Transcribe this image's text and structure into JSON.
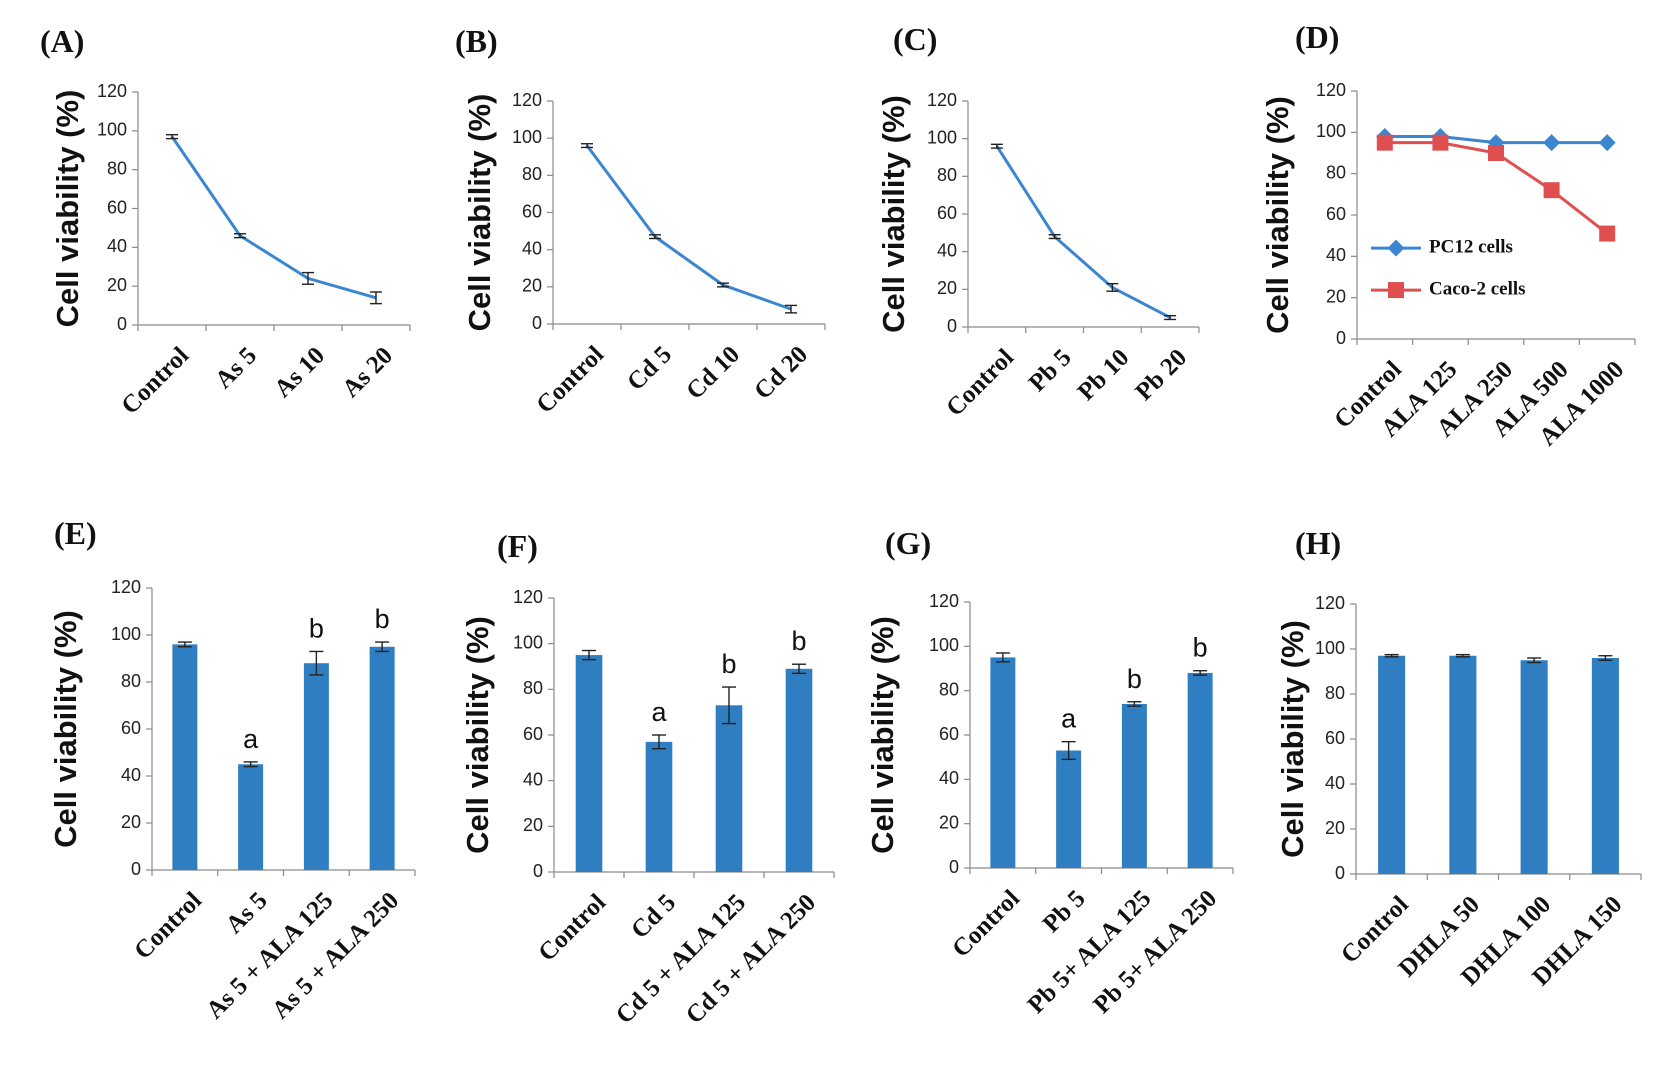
{
  "colors": {
    "blue": "#2E7EC1",
    "line_blue": "#3B86D0",
    "red": "#E04F50",
    "axis": "#8a8a8a",
    "err": "#222222"
  },
  "chart_data": [
    {
      "id": "A",
      "label": "(A)",
      "type": "line",
      "categories": [
        "Control",
        "As 5",
        "As 10",
        "As 20"
      ],
      "series": [
        {
          "name": "",
          "values": [
            97,
            46,
            24,
            14
          ],
          "errors": [
            1,
            1,
            3,
            3
          ]
        }
      ],
      "ylabel": "Cell viability (%)",
      "ylim": [
        0,
        120
      ],
      "yticks": [
        0,
        20,
        40,
        60,
        80,
        100,
        120
      ]
    },
    {
      "id": "B",
      "label": "(B)",
      "type": "line",
      "categories": [
        "Control",
        "Cd 5",
        "Cd 10",
        "Cd 20"
      ],
      "series": [
        {
          "name": "",
          "values": [
            96,
            47,
            21,
            8
          ],
          "errors": [
            1,
            1,
            1,
            2
          ]
        }
      ],
      "ylabel": "Cell viability (%)",
      "ylim": [
        0,
        120
      ],
      "yticks": [
        0,
        20,
        40,
        60,
        80,
        100,
        120
      ]
    },
    {
      "id": "C",
      "label": "(C)",
      "type": "line",
      "categories": [
        "Control",
        "Pb 5",
        "Pb 10",
        "Pb 20"
      ],
      "series": [
        {
          "name": "",
          "values": [
            96,
            48,
            21,
            5
          ],
          "errors": [
            1,
            1,
            2,
            1
          ]
        }
      ],
      "ylabel": "Cell viability (%)",
      "ylim": [
        0,
        120
      ],
      "yticks": [
        0,
        20,
        40,
        60,
        80,
        100,
        120
      ]
    },
    {
      "id": "D",
      "label": "(D)",
      "type": "line",
      "categories": [
        "Control",
        "ALA 125",
        "ALA 250",
        "ALA 500",
        "ALA 1000"
      ],
      "series": [
        {
          "name": "PC12 cells",
          "values": [
            98,
            98,
            95,
            95,
            95
          ],
          "errors": [
            0,
            0,
            0,
            0,
            0
          ]
        },
        {
          "name": "Caco-2 cells",
          "values": [
            95,
            95,
            90,
            72,
            51
          ],
          "errors": [
            1,
            1,
            1,
            2,
            1
          ]
        }
      ],
      "ylabel": "Cell viability (%)",
      "ylim": [
        0,
        120
      ],
      "yticks": [
        0,
        20,
        40,
        60,
        80,
        100,
        120
      ]
    },
    {
      "id": "E",
      "label": "(E)",
      "type": "bar",
      "categories": [
        "Control",
        "As 5",
        "As 5 + ALA 125",
        "As 5 + ALA 250"
      ],
      "series": [
        {
          "name": "",
          "values": [
            96,
            45,
            88,
            95
          ],
          "errors": [
            1,
            1,
            5,
            2
          ]
        }
      ],
      "annotations": [
        "",
        "a",
        "b",
        "b"
      ],
      "ylabel": "Cell viability (%)",
      "ylim": [
        0,
        120
      ],
      "yticks": [
        0,
        20,
        40,
        60,
        80,
        100,
        120
      ]
    },
    {
      "id": "F",
      "label": "(F)",
      "type": "bar",
      "categories": [
        "Control",
        "Cd 5",
        "Cd 5 + ALA 125",
        "Cd 5 + ALA 250"
      ],
      "series": [
        {
          "name": "",
          "values": [
            95,
            57,
            73,
            89
          ],
          "errors": [
            2,
            3,
            8,
            2
          ]
        }
      ],
      "annotations": [
        "",
        "a",
        "b",
        "b"
      ],
      "ylabel": "Cell viability (%)",
      "ylim": [
        0,
        120
      ],
      "yticks": [
        0,
        20,
        40,
        60,
        80,
        100,
        120
      ]
    },
    {
      "id": "G",
      "label": "(G)",
      "type": "bar",
      "categories": [
        "Control",
        "Pb 5",
        "Pb 5+ ALA 125",
        "Pb 5+ ALA 250"
      ],
      "series": [
        {
          "name": "",
          "values": [
            95,
            53,
            74,
            88
          ],
          "errors": [
            2,
            4,
            1,
            1
          ]
        }
      ],
      "annotations": [
        "",
        "a",
        "b",
        "b"
      ],
      "ylabel": "Cell viability (%)",
      "ylim": [
        0,
        120
      ],
      "yticks": [
        0,
        20,
        40,
        60,
        80,
        100,
        120
      ]
    },
    {
      "id": "H",
      "label": "(H)",
      "type": "bar",
      "categories": [
        "Control",
        "DHLA 50",
        "DHLA 100",
        "DHLA 150"
      ],
      "series": [
        {
          "name": "",
          "values": [
            97,
            97,
            95,
            96
          ],
          "errors": [
            0.5,
            0.5,
            1,
            1
          ]
        }
      ],
      "annotations": [
        "",
        "",
        "",
        ""
      ],
      "ylabel": "Cell viability (%)",
      "ylim": [
        0,
        120
      ],
      "yticks": [
        0,
        20,
        40,
        60,
        80,
        100,
        120
      ]
    }
  ]
}
